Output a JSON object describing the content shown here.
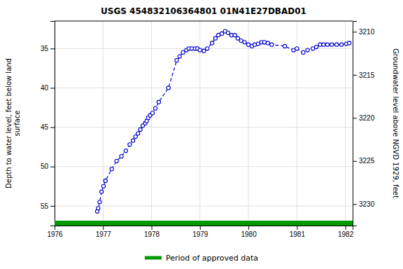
{
  "chart_data": {
    "type": "line",
    "title": "USGS 454832106364801 01N41E27DBAD01",
    "ylabel": "Depth to water level, feet below land\nsurface",
    "y2label": "Groundwater level above NGVD 1929, feet",
    "xlim": [
      1976,
      1982.15
    ],
    "ylim": [
      57.5,
      31.5
    ],
    "y2lim": [
      3232.5,
      3208.75
    ],
    "xticks": [
      1976,
      1977,
      1978,
      1979,
      1980,
      1981,
      1982
    ],
    "yticks": [
      35,
      40,
      45,
      50,
      55
    ],
    "y2ticks": [
      3210,
      3215,
      3220,
      3225,
      3230
    ],
    "grid": true,
    "legend": "bottom",
    "x": [
      1976.88,
      1976.9,
      1976.93,
      1976.97,
      1977.01,
      1977.05,
      1977.18,
      1977.28,
      1977.38,
      1977.47,
      1977.55,
      1977.62,
      1977.67,
      1977.72,
      1977.77,
      1977.82,
      1977.87,
      1977.9,
      1977.93,
      1977.97,
      1978.02,
      1978.08,
      1978.15,
      1978.35,
      1978.52,
      1978.58,
      1978.65,
      1978.72,
      1978.77,
      1978.83,
      1978.9,
      1978.95,
      1979.0,
      1979.08,
      1979.15,
      1979.25,
      1979.32,
      1979.38,
      1979.45,
      1979.52,
      1979.58,
      1979.65,
      1979.72,
      1979.78,
      1979.85,
      1979.92,
      1980.0,
      1980.07,
      1980.13,
      1980.2,
      1980.27,
      1980.33,
      1980.4,
      1980.48,
      1980.75,
      1980.93,
      1981.0,
      1981.13,
      1981.22,
      1981.33,
      1981.4,
      1981.48,
      1981.55,
      1981.63,
      1981.72,
      1981.82,
      1981.92,
      1982.02,
      1982.08
    ],
    "series": [
      {
        "color": "#0000CC",
        "marker": "circle",
        "line_style": "dashed",
        "values": [
          55.7,
          55.3,
          54.5,
          53.2,
          52.5,
          51.8,
          50.3,
          49.3,
          48.7,
          48.0,
          47.2,
          46.7,
          46.2,
          45.8,
          45.3,
          44.8,
          44.5,
          44.2,
          43.8,
          43.5,
          43.2,
          42.6,
          41.8,
          40.0,
          36.5,
          36.0,
          35.5,
          35.2,
          35.0,
          35.0,
          35.0,
          35.0,
          35.2,
          35.3,
          35.0,
          34.3,
          33.7,
          33.3,
          33.1,
          32.8,
          33.0,
          33.3,
          33.3,
          33.7,
          34.0,
          34.2,
          34.5,
          34.7,
          34.5,
          34.4,
          34.2,
          34.2,
          34.3,
          34.5,
          34.7,
          35.2,
          35.0,
          35.5,
          35.2,
          35.0,
          34.8,
          34.5,
          34.5,
          34.5,
          34.5,
          34.5,
          34.5,
          34.4,
          34.3
        ]
      },
      {
        "name": "Period of approved data",
        "color": "#009900",
        "type": "band"
      }
    ]
  }
}
